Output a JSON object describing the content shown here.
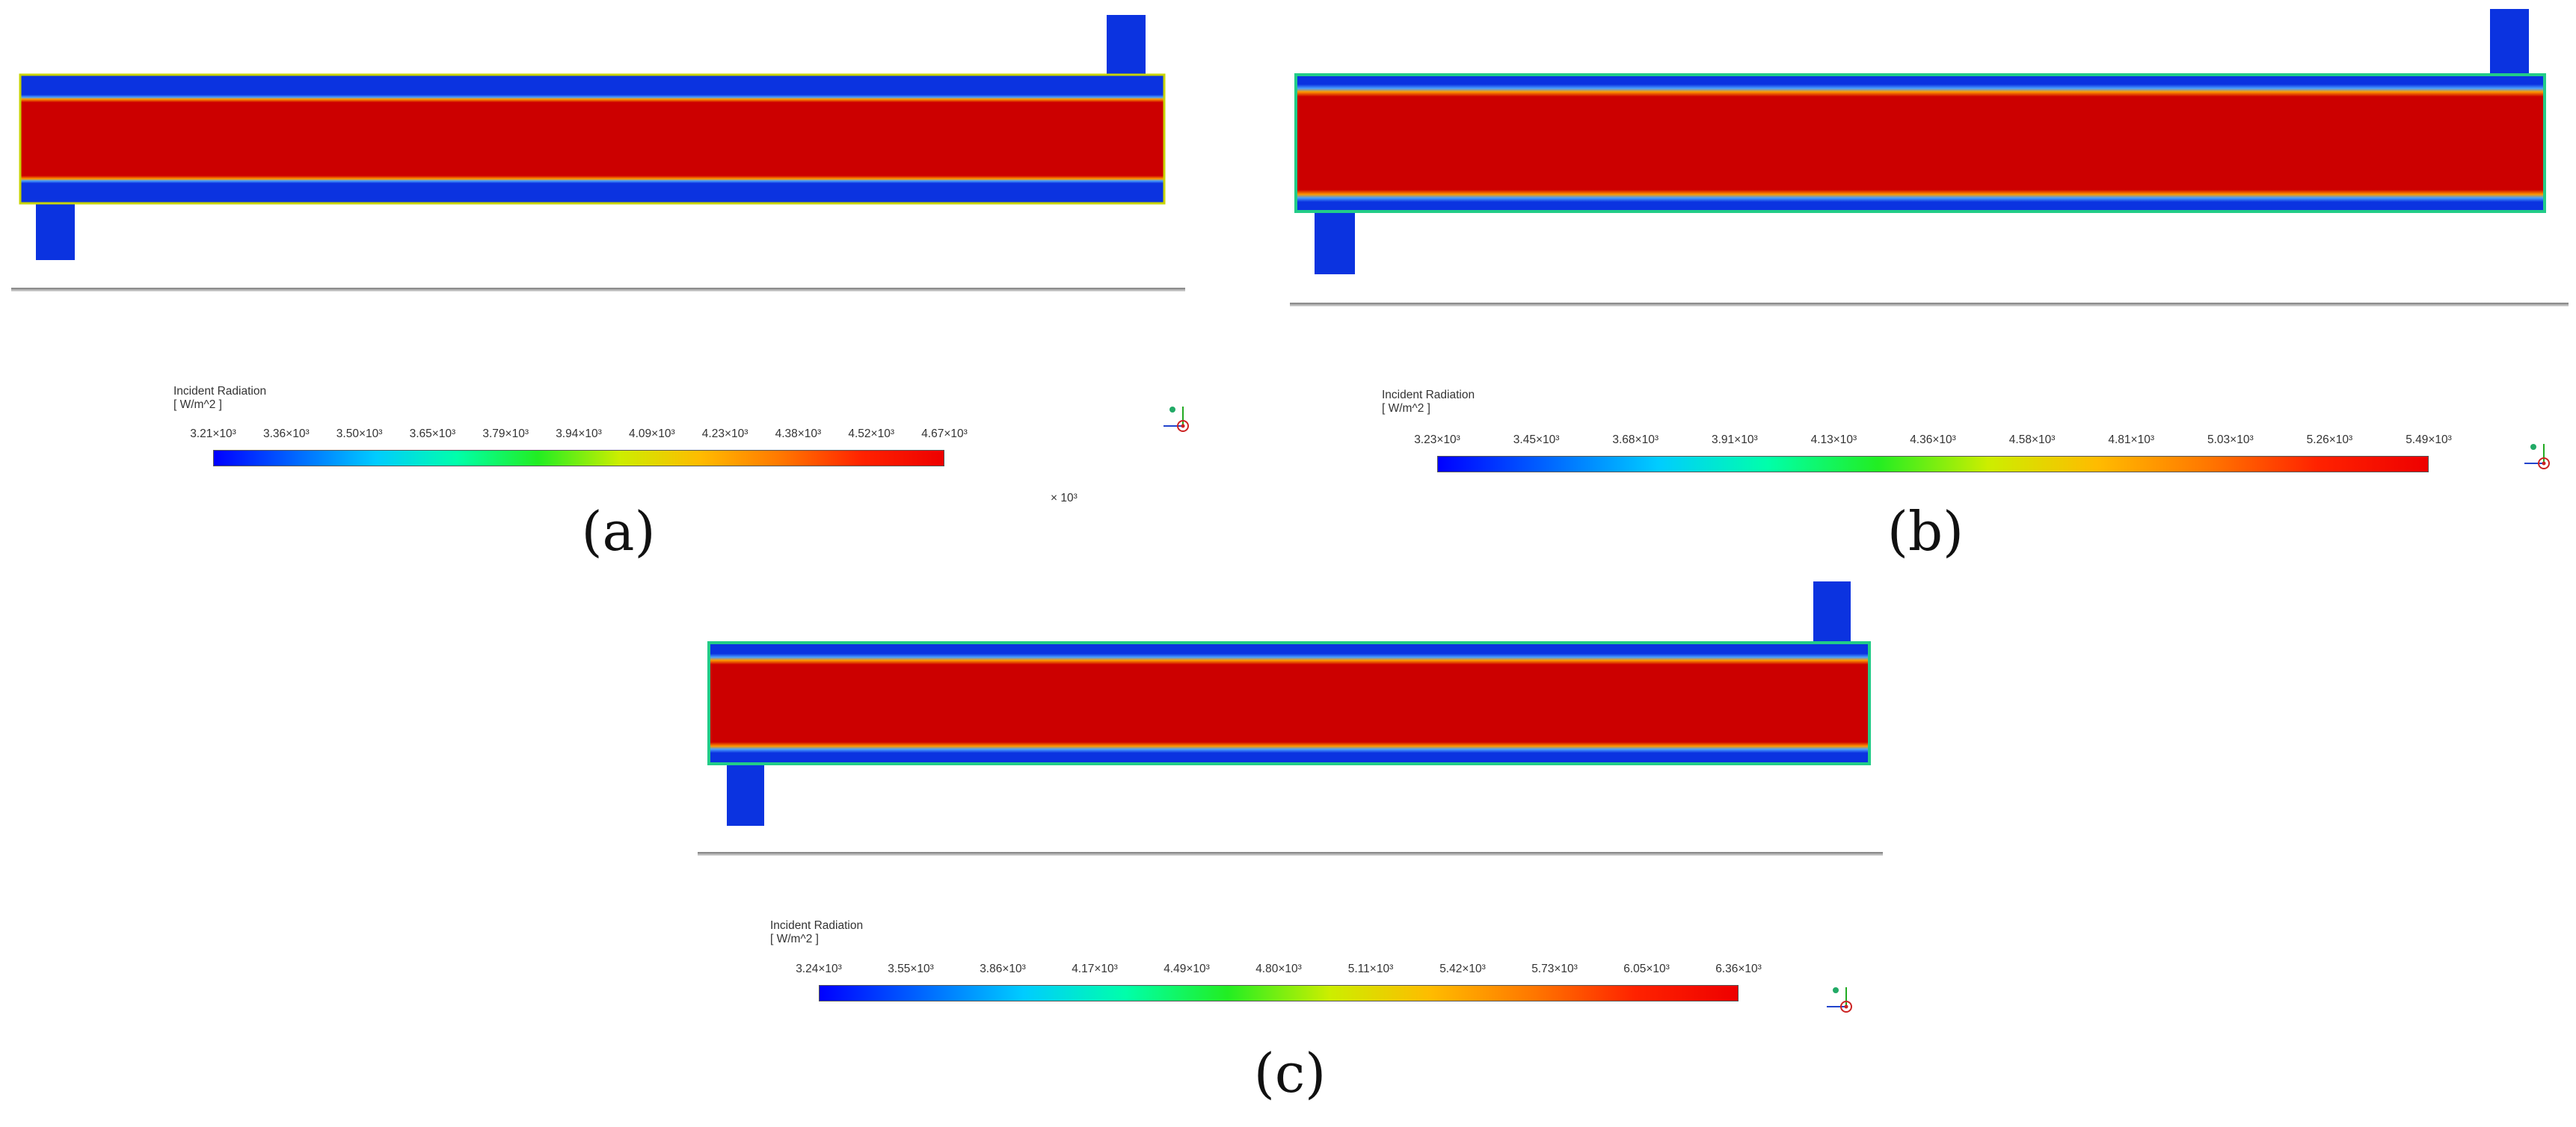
{
  "colors": {
    "core": "#cc0000",
    "wall": "#0b33e0",
    "outline_a": "#c8d400",
    "outline_bc": "#22cc88",
    "scale": [
      "#0000ff",
      "#0066ff",
      "#00ccff",
      "#00ffaa",
      "#22ee22",
      "#ccee00",
      "#ffbb00",
      "#ff7700",
      "#ff2200",
      "#ee0000"
    ]
  },
  "panels": [
    {
      "id": "a",
      "label": "(a)",
      "colorbar": {
        "title": "Incident Radiation",
        "unit": "[ W/m^2 ]",
        "ticks": [
          "3.21×10³",
          "3.36×10³",
          "3.50×10³",
          "3.65×10³",
          "3.79×10³",
          "3.94×10³",
          "4.09×10³",
          "4.23×10³",
          "4.38×10³",
          "4.52×10³",
          "4.67×10³"
        ],
        "multiplier": "× 10³"
      }
    },
    {
      "id": "b",
      "label": "(b)",
      "colorbar": {
        "title": "Incident Radiation",
        "unit": "[ W/m^2 ]",
        "ticks": [
          "3.23×10³",
          "3.45×10³",
          "3.68×10³",
          "3.91×10³",
          "4.13×10³",
          "4.36×10³",
          "4.58×10³",
          "4.81×10³",
          "5.03×10³",
          "5.26×10³",
          "5.49×10³"
        ]
      }
    },
    {
      "id": "c",
      "label": "(c)",
      "colorbar": {
        "title": "Incident Radiation",
        "unit": "[ W/m^2 ]",
        "ticks": [
          "3.24×10³",
          "3.55×10³",
          "3.86×10³",
          "4.17×10³",
          "4.49×10³",
          "4.80×10³",
          "5.11×10³",
          "5.42×10³",
          "5.73×10³",
          "6.05×10³",
          "6.36×10³"
        ]
      }
    }
  ]
}
